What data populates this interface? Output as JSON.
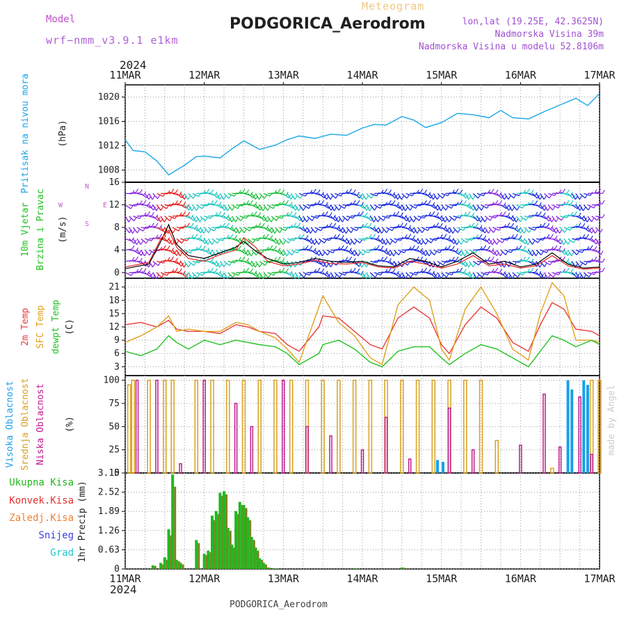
{
  "header": {
    "model_label": "Model",
    "model_value": "wrf−nmm_v3.9.1  e1km",
    "meteogram_label": "Meteogram",
    "station": "PODGORICA_Aerodrom",
    "lonlat": "lon,lat (19.25E, 42.3625N)",
    "altitude": "Nadmorska Visina 39m",
    "model_altitude": "Nadmorska Visina u modelu 52.8106m"
  },
  "footer": {
    "station": "PODGORICA_Aerodrom",
    "credit": "made by Angel"
  },
  "time_axis": {
    "year_top": "2024",
    "year_bottom": "2024",
    "labels": [
      "11MAR",
      "12MAR",
      "13MAR",
      "14MAR",
      "15MAR",
      "16MAR",
      "17MAR"
    ]
  },
  "colors": {
    "pressure": "#1aa6e8",
    "temp2m": "#e83c3c",
    "sfc_temp": "#e0a020",
    "dewpoint": "#22c022",
    "high_cloud": "#1aa0e8",
    "mid_cloud": "#d8a020",
    "low_cloud": "#c01a8c",
    "total_precip": "#20b820",
    "conv_precip": "#e83030",
    "freezing_precip": "#f08030",
    "snow": "#4040e0",
    "hail": "#20c8c8",
    "wind_purple": "#8a2be2",
    "wind_blue": "#2030e0",
    "wind_cyan": "#20c8c0",
    "wind_green": "#20c040",
    "wind_red": "#e82020"
  },
  "chart_data": [
    {
      "type": "line",
      "ylabel_1": "Pritisak na nivou mora",
      "ylabel_2": "(hPa)",
      "ylim": [
        1006,
        1022
      ],
      "yticks": [
        1008,
        1012,
        1016,
        1020
      ],
      "grid": true,
      "x_days": [
        0,
        0.1,
        0.25,
        0.4,
        0.5,
        0.55,
        0.6,
        0.75,
        0.9,
        1.0,
        1.2,
        1.35,
        1.5,
        1.7,
        1.9,
        2.05,
        2.2,
        2.4,
        2.6,
        2.8,
        3.0,
        3.15,
        3.3,
        3.5,
        3.65,
        3.8,
        4.0,
        4.2,
        4.4,
        4.6,
        4.75,
        4.9,
        5.1,
        5.3,
        5.5,
        5.7,
        5.85,
        6.0
      ],
      "series": [
        {
          "values": [
            1013.0,
            1011.2,
            1011.0,
            1009.5,
            1008.0,
            1007.2,
            1007.6,
            1008.8,
            1010.2,
            1010.3,
            1010.0,
            1011.5,
            1012.8,
            1011.4,
            1012.1,
            1013.0,
            1013.6,
            1013.2,
            1013.9,
            1013.7,
            1014.9,
            1015.5,
            1015.4,
            1016.8,
            1016.2,
            1015.0,
            1015.8,
            1017.3,
            1017.1,
            1016.6,
            1017.8,
            1016.6,
            1016.4,
            1017.6,
            1018.7,
            1019.8,
            1018.6,
            1020.6
          ]
        }
      ]
    },
    {
      "type": "scatter",
      "ylabel_1": "10m Vjetar",
      "ylabel_2": "Brzina i Pravac",
      "ylabel_3": "(m/s)",
      "compass": {
        "north": "N",
        "south": "S",
        "east": "E",
        "west": "W"
      },
      "ylim": [
        -1,
        16
      ],
      "yticks": [
        0,
        4,
        8,
        12,
        16
      ],
      "grid": true,
      "x_days": [
        0,
        0.3,
        0.45,
        0.55,
        0.65,
        0.8,
        1.0,
        1.2,
        1.4,
        1.5,
        1.65,
        1.8,
        2.0,
        2.2,
        2.4,
        2.6,
        2.8,
        3.0,
        3.2,
        3.4,
        3.6,
        3.8,
        4.0,
        4.2,
        4.4,
        4.6,
        4.8,
        5.0,
        5.2,
        5.4,
        5.6,
        5.8,
        6.0
      ],
      "series": [
        {
          "values": [
            0.7,
            1.5,
            5.5,
            8.5,
            5.0,
            3.0,
            2.5,
            3.5,
            4.5,
            5.5,
            3.8,
            2.5,
            1.5,
            1.8,
            2.5,
            2.0,
            1.8,
            2.0,
            1.2,
            1.0,
            2.5,
            2.0,
            1.0,
            2.0,
            3.5,
            1.5,
            2.0,
            1.0,
            1.5,
            3.5,
            1.5,
            0.8,
            1.0
          ]
        },
        {
          "values": [
            1.0,
            1.8,
            6.0,
            7.5,
            4.5,
            2.5,
            2.0,
            3.2,
            4.0,
            6.2,
            4.5,
            2.0,
            1.2,
            1.5,
            2.2,
            1.6,
            1.5,
            1.8,
            1.0,
            0.8,
            2.0,
            1.5,
            0.8,
            1.5,
            3.0,
            1.2,
            1.5,
            0.8,
            1.2,
            3.0,
            1.2,
            0.6,
            0.8
          ]
        }
      ],
      "barb_colors": [
        "wind_purple",
        "wind_purple",
        "wind_red",
        "wind_red",
        "wind_cyan",
        "wind_cyan",
        "wind_cyan",
        "wind_green",
        "wind_green",
        "wind_green",
        "wind_green",
        "wind_cyan",
        "wind_blue",
        "wind_blue",
        "wind_blue",
        "wind_blue",
        "wind_cyan",
        "wind_blue",
        "wind_blue",
        "wind_blue",
        "wind_blue",
        "wind_blue",
        "wind_blue",
        "wind_cyan",
        "wind_blue",
        "wind_purple",
        "wind_blue",
        "wind_cyan",
        "wind_blue",
        "wind_purple",
        "wind_cyan",
        "wind_blue",
        "wind_purple"
      ]
    },
    {
      "type": "line",
      "ylabel_1": "2m Temp",
      "ylabel_2": "SFC Temp",
      "ylabel_3": "dewpt Temp",
      "ylabel_4": "(C)",
      "ylim": [
        1,
        23
      ],
      "yticks": [
        3,
        6,
        9,
        12,
        15,
        18,
        21
      ],
      "grid": true,
      "x_days": [
        0,
        0.2,
        0.4,
        0.55,
        0.65,
        0.8,
        1.0,
        1.2,
        1.4,
        1.55,
        1.7,
        1.9,
        2.05,
        2.2,
        2.45,
        2.5,
        2.7,
        2.9,
        3.1,
        3.25,
        3.45,
        3.65,
        3.85,
        4.0,
        4.1,
        4.3,
        4.5,
        4.7,
        4.9,
        5.1,
        5.25,
        5.4,
        5.55,
        5.7,
        5.9,
        6.0
      ],
      "series": [
        {
          "values": [
            12.5,
            13.0,
            12.0,
            13.5,
            11.5,
            11.0,
            11.0,
            10.5,
            12.5,
            12.0,
            11.0,
            10.5,
            8.0,
            6.5,
            12.0,
            14.5,
            14.0,
            11.0,
            8.0,
            7.0,
            14.0,
            16.5,
            14.0,
            8.0,
            6.0,
            12.5,
            16.5,
            14.0,
            8.5,
            6.5,
            12.5,
            17.5,
            16.0,
            11.5,
            11.0,
            10.0
          ]
        },
        {
          "values": [
            8.5,
            10.0,
            12.0,
            14.5,
            11.0,
            11.5,
            11.0,
            11.0,
            13.0,
            12.5,
            11.0,
            9.5,
            7.0,
            4.0,
            16.5,
            19.0,
            13.0,
            10.0,
            5.0,
            3.5,
            17.0,
            21.0,
            18.0,
            7.0,
            4.5,
            16.0,
            21.0,
            15.0,
            7.0,
            4.5,
            15.0,
            22.0,
            19.0,
            9.0,
            9.0,
            8.5
          ]
        },
        {
          "values": [
            6.5,
            5.5,
            7.0,
            10.0,
            8.5,
            7.0,
            9.0,
            8.0,
            9.0,
            8.5,
            8.0,
            7.5,
            6.0,
            3.5,
            6.0,
            8.0,
            9.0,
            7.0,
            4.0,
            3.0,
            6.5,
            7.5,
            7.5,
            5.0,
            3.5,
            6.0,
            8.0,
            7.0,
            5.0,
            3.0,
            6.5,
            10.0,
            9.0,
            7.5,
            9.0,
            8.0
          ]
        }
      ]
    },
    {
      "type": "bar",
      "ylabel_1": "Visoka Oblacnost",
      "ylabel_2": "Srednja Oblacnost",
      "ylabel_3": "Niska Oblacnost",
      "ylabel_4": "(%)",
      "ylim": [
        0,
        105
      ],
      "yticks": [
        0,
        25,
        50,
        75,
        100
      ],
      "grid": true,
      "high_x_days": [
        3.95,
        4.02,
        5.6,
        5.65,
        5.8,
        5.85
      ],
      "high_values": [
        14,
        12,
        100,
        90,
        100,
        95
      ],
      "mid_x_days": [
        0.05,
        0.1,
        0.3,
        0.5,
        0.6,
        0.9,
        1.1,
        1.3,
        1.5,
        1.7,
        1.9,
        2.1,
        2.3,
        2.5,
        2.7,
        2.9,
        3.1,
        3.3,
        3.5,
        3.7,
        3.9,
        4.1,
        4.3,
        4.5,
        4.7,
        5.4,
        5.9,
        6.0
      ],
      "mid_values": [
        95,
        100,
        100,
        100,
        100,
        100,
        100,
        100,
        100,
        100,
        100,
        100,
        100,
        100,
        100,
        100,
        100,
        100,
        100,
        100,
        100,
        100,
        100,
        100,
        35,
        5,
        100,
        100
      ],
      "low_x_days": [
        0.15,
        0.4,
        0.7,
        1.0,
        1.4,
        1.6,
        2.0,
        2.3,
        2.6,
        3.0,
        3.3,
        3.6,
        4.1,
        4.4,
        5.0,
        5.3,
        5.5,
        5.75,
        5.9
      ],
      "low_values": [
        100,
        100,
        10,
        100,
        75,
        50,
        100,
        50,
        40,
        25,
        60,
        15,
        70,
        25,
        30,
        85,
        28,
        82,
        20
      ]
    },
    {
      "type": "bar",
      "ylabel_1": "1hr Precip (mm)",
      "legend": [
        "Ukupna Kisa",
        "Konvek.Kisa",
        "Zaledj.Kisa",
        "Snijeg",
        "Grad"
      ],
      "ylim": [
        0,
        3.15
      ],
      "yticks": [
        0,
        0.63,
        1.26,
        1.89,
        2.52,
        3.15
      ],
      "grid": true,
      "x_days": [
        0.35,
        0.45,
        0.5,
        0.55,
        0.6,
        0.65,
        0.7,
        0.9,
        1.05,
        1.0,
        1.1,
        1.15,
        1.2,
        1.25,
        1.3,
        1.35,
        1.4,
        1.45,
        1.5,
        1.55,
        1.6,
        1.65,
        1.7,
        1.75,
        1.8,
        1.9,
        2.9,
        3.5
      ],
      "total": [
        0.12,
        0.2,
        0.38,
        1.3,
        3.1,
        0.3,
        0.2,
        0.95,
        0.6,
        0.5,
        1.75,
        1.9,
        2.5,
        2.55,
        1.35,
        0.8,
        1.9,
        2.2,
        2.1,
        1.7,
        1.05,
        0.7,
        0.35,
        0.2,
        0.05,
        0.02,
        0.03,
        0.05
      ],
      "convective": [
        0.1,
        0.15,
        0.3,
        1.1,
        2.7,
        0.25,
        0.15,
        0.85,
        0.55,
        0.45,
        1.6,
        1.8,
        2.4,
        2.45,
        1.25,
        0.7,
        1.8,
        2.1,
        2.0,
        1.6,
        0.95,
        0.6,
        0.3,
        0.15,
        0.04,
        0.01,
        0.02,
        0.04
      ]
    }
  ]
}
